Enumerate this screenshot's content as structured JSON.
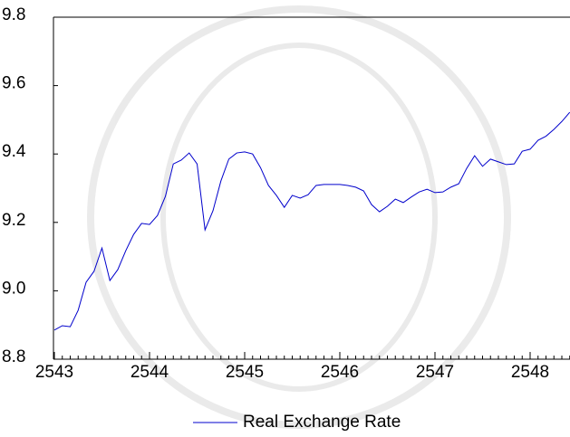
{
  "chart_data": {
    "type": "line",
    "categories": [
      "2543",
      null,
      null,
      null,
      null,
      null,
      null,
      null,
      null,
      null,
      null,
      null,
      "2544",
      null,
      null,
      null,
      null,
      null,
      null,
      null,
      null,
      null,
      null,
      null,
      "2545",
      null,
      null,
      null,
      null,
      null,
      null,
      null,
      null,
      null,
      null,
      null,
      "2546",
      null,
      null,
      null,
      null,
      null,
      null,
      null,
      null,
      null,
      null,
      null,
      "2547",
      null,
      null,
      null,
      null,
      null,
      null,
      null,
      null,
      null,
      null,
      null,
      "2548",
      null,
      null,
      null,
      null,
      null
    ],
    "series": [
      {
        "name": "Real Exchange Rate",
        "color": "#0000cc",
        "values": [
          8.885,
          8.898,
          8.895,
          8.943,
          9.025,
          9.057,
          9.125,
          9.03,
          9.062,
          9.117,
          9.165,
          9.197,
          9.194,
          9.22,
          9.276,
          9.371,
          9.382,
          9.403,
          9.371,
          9.178,
          9.234,
          9.321,
          9.385,
          9.403,
          9.406,
          9.4,
          9.36,
          9.308,
          9.279,
          9.244,
          9.279,
          9.271,
          9.281,
          9.308,
          9.311,
          9.311,
          9.311,
          9.308,
          9.303,
          9.292,
          9.252,
          9.231,
          9.247,
          9.268,
          9.258,
          9.274,
          9.289,
          9.297,
          9.287,
          9.289,
          9.303,
          9.313,
          9.358,
          9.395,
          9.364,
          9.385,
          9.377,
          9.369,
          9.371,
          9.408,
          9.414,
          9.44,
          9.452,
          9.472,
          9.495,
          9.522
        ]
      }
    ],
    "ylim": [
      8.8,
      9.8
    ],
    "yticks": [
      8.8,
      {
        "value": 9.0,
        "label": "9.0"
      },
      9.2,
      9.4,
      9.6,
      9.8
    ],
    "legend": "bottom"
  }
}
